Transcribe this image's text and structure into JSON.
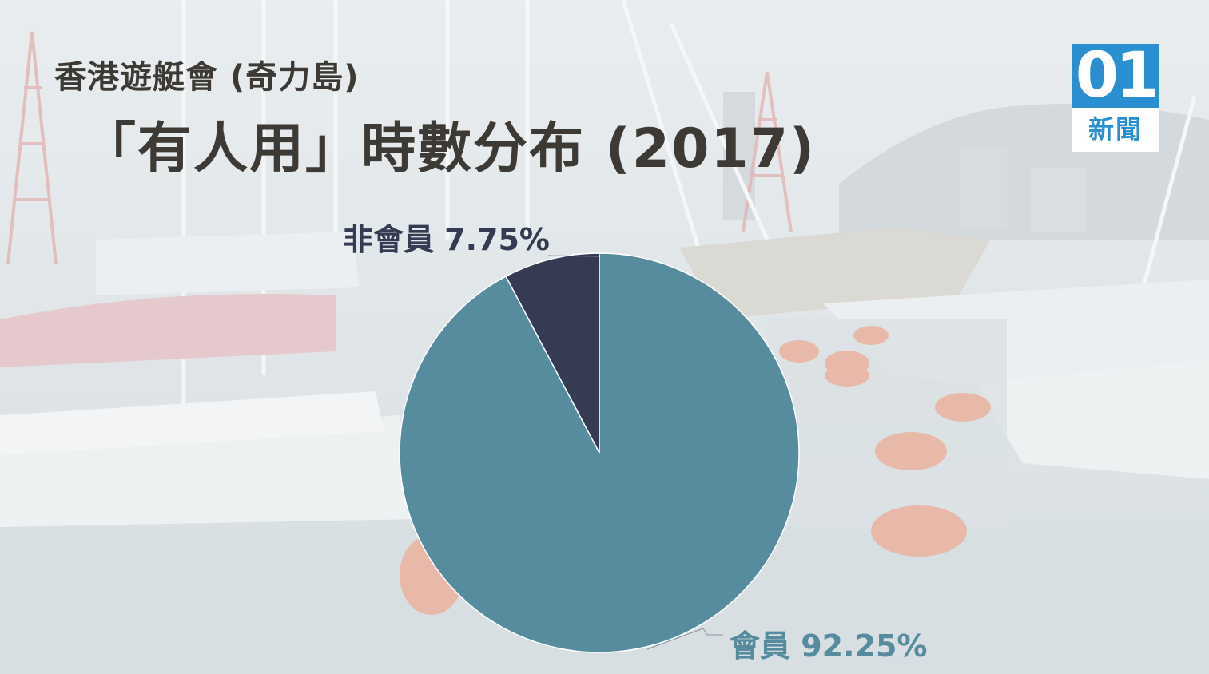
{
  "header": {
    "subtitle": "香港遊艇會 (奇力島)",
    "title": "「有人用」時數分布 (2017)"
  },
  "logo": {
    "mark": "01",
    "text": "新聞",
    "color": "#2a8fd0"
  },
  "chart_data": {
    "type": "pie",
    "title": "「有人用」時數分布 (2017)",
    "subtitle": "香港遊艇會 (奇力島)",
    "slices": [
      {
        "name": "非會員",
        "value": 7.75,
        "label": "非會員 7.75%",
        "color": "#343b52",
        "label_color": "#343b52"
      },
      {
        "name": "會員",
        "value": 92.25,
        "label": "會員 92.25%",
        "color": "#578c9f",
        "label_color": "#578c9f"
      }
    ],
    "start_angle": "12 o'clock",
    "direction": "counter-clockwise",
    "legend": "none"
  }
}
